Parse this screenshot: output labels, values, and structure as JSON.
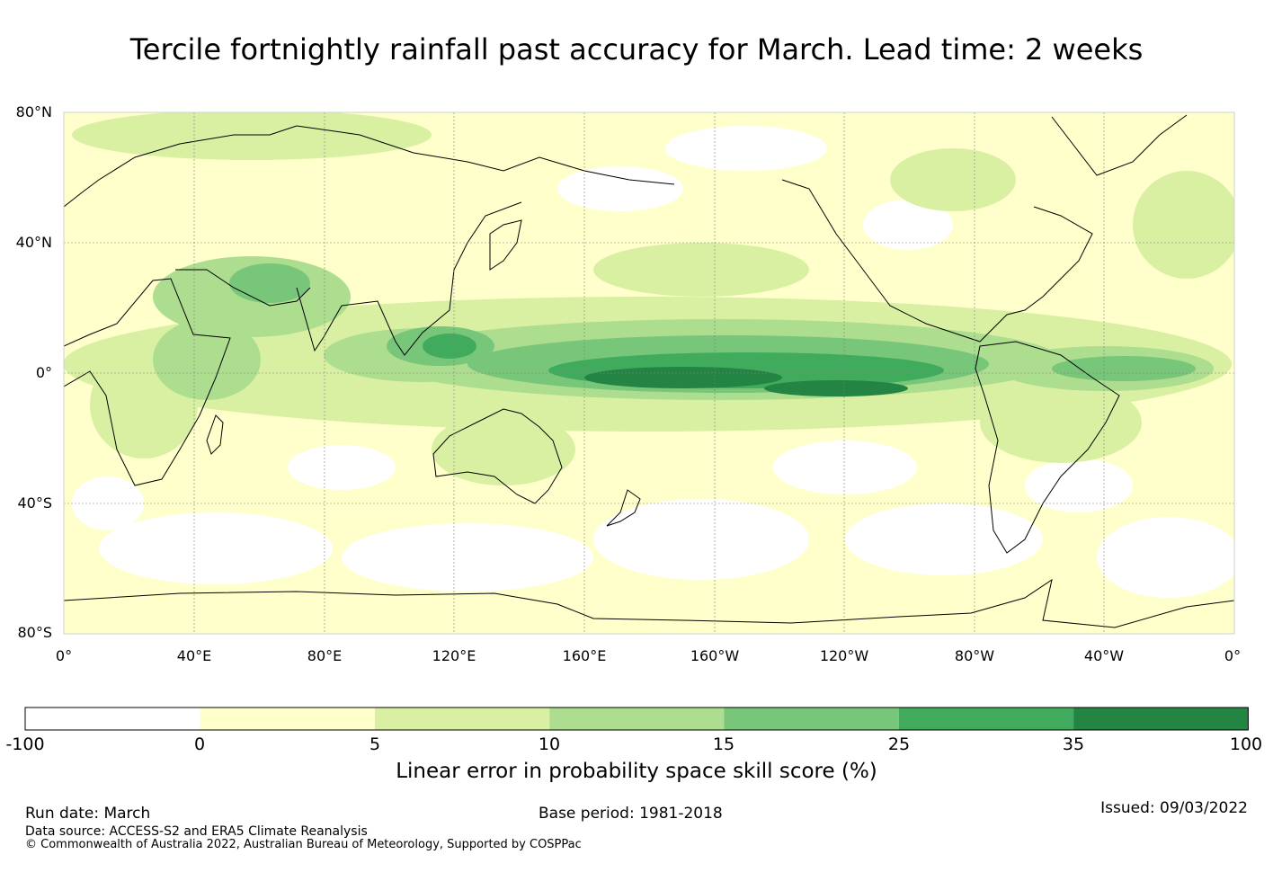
{
  "title": "Tercile fortnightly rainfall past accuracy for March. Lead time: 2 weeks",
  "map": {
    "lat_labels": [
      "80°N",
      "40°N",
      "0°",
      "40°S",
      "80°S"
    ],
    "lon_labels": [
      "0°",
      "40°E",
      "80°E",
      "120°E",
      "160°E",
      "160°W",
      "120°W",
      "80°W",
      "40°W",
      "0°"
    ]
  },
  "colorbar": {
    "boundaries": [
      "-100",
      "0",
      "5",
      "10",
      "15",
      "25",
      "35",
      "100"
    ],
    "colors": [
      "#ffffff",
      "#ffffcc",
      "#d9f0a3",
      "#addd8e",
      "#78c679",
      "#41ab5d",
      "#238443"
    ],
    "label": "Linear error in probability space skill score (%)"
  },
  "footer": {
    "run_date": "Run date: March",
    "base_period": "Base period: 1981-2018",
    "issued": "Issued: 09/03/2022",
    "data_source": "Data source: ACCESS-S2 and ERA5 Climate Reanalysis",
    "copyright": "© Commonwealth of Australia 2022, Australian Bureau of Meteorology, Supported by COSPPac"
  }
}
